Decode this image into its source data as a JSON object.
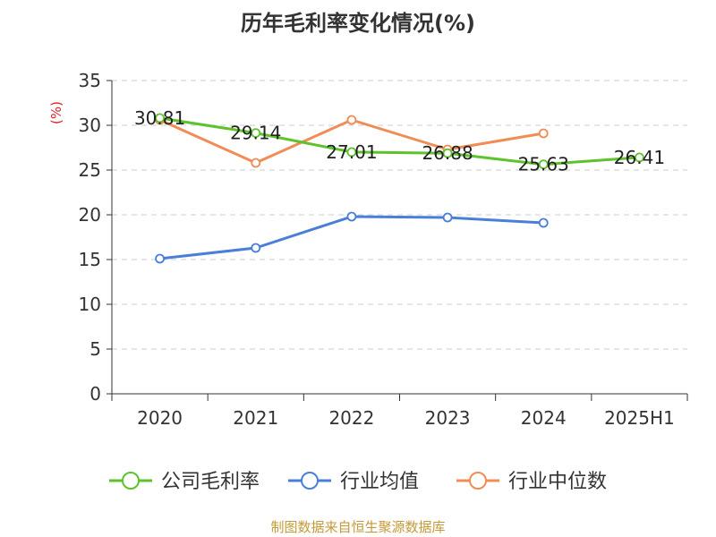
{
  "chart_data": {
    "type": "line",
    "title": "历年毛利率变化情况(%)",
    "ylabel": "(%)",
    "xlabel": "",
    "categories": [
      "2020",
      "2021",
      "2022",
      "2023",
      "2024",
      "2025H1"
    ],
    "ylim": [
      0,
      35
    ],
    "yticks": [
      0,
      5,
      10,
      15,
      20,
      25,
      30,
      35
    ],
    "grid": true,
    "legend_position": "bottom",
    "series": [
      {
        "name": "公司毛利率",
        "color": "#5ec22a",
        "values": [
          30.81,
          29.14,
          27.01,
          26.88,
          25.63,
          26.41
        ],
        "labels": [
          "30.81",
          "29.14",
          "27.01",
          "26.88",
          "25.63",
          "26.41"
        ]
      },
      {
        "name": "行业均值",
        "color": "#4a7fd8",
        "values": [
          15.1,
          16.3,
          19.8,
          19.7,
          19.1,
          null
        ]
      },
      {
        "name": "行业中位数",
        "color": "#f08c55",
        "values": [
          30.6,
          25.8,
          30.6,
          27.3,
          29.1,
          null
        ]
      }
    ]
  },
  "source_note": "制图数据来自恒生聚源数据库"
}
